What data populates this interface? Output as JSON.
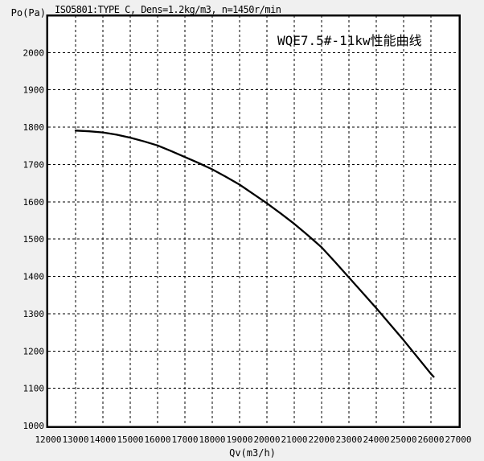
{
  "window": {
    "background": "#f0f0f0",
    "plot_background": "#ffffff"
  },
  "chart_data": {
    "type": "line",
    "title": "WQE7.5#-11kw性能曲线",
    "title_color": "#dd2222",
    "subtitle": "ISO5801:TYPE C, Dens=1.2kg/m3, n=1450r/min",
    "xlabel": "Qv(m3/h)",
    "ylabel": "Po(Pa)",
    "xlim": [
      12000,
      27000
    ],
    "ylim": [
      1000,
      2100
    ],
    "x_ticks": [
      12000,
      13000,
      14000,
      15000,
      16000,
      17000,
      18000,
      19000,
      20000,
      21000,
      22000,
      23000,
      24000,
      25000,
      26000,
      27000
    ],
    "y_ticks": [
      1000,
      1100,
      1200,
      1300,
      1400,
      1500,
      1600,
      1700,
      1800,
      1900,
      2000
    ],
    "grid": "dashed",
    "legend_position": "none",
    "line_color": "#000000",
    "series": [
      {
        "name": "WQE7.5#-11kw",
        "x": [
          13000,
          13500,
          14000,
          14500,
          15000,
          15500,
          16000,
          16500,
          17000,
          17500,
          18000,
          18500,
          19000,
          19500,
          20000,
          20500,
          21000,
          21500,
          22000,
          22500,
          23000,
          23500,
          24000,
          24500,
          25000,
          25500,
          26000,
          26100
        ],
        "y": [
          1791,
          1789,
          1786,
          1780,
          1772,
          1762,
          1751,
          1736,
          1720,
          1704,
          1687,
          1667,
          1646,
          1621,
          1596,
          1569,
          1541,
          1510,
          1478,
          1438,
          1397,
          1356,
          1315,
          1272,
          1229,
          1184,
          1139,
          1131
        ]
      }
    ]
  }
}
